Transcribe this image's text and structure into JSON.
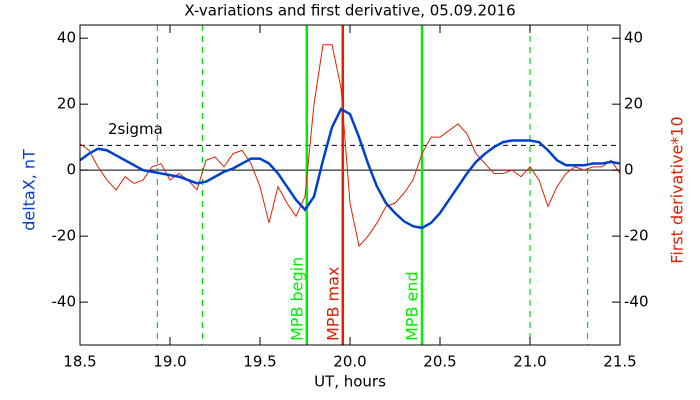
{
  "chart_data": {
    "type": "line",
    "title": "X-variations and first derivative, 05.09.2016",
    "xlabel": "UT, hours",
    "ylabel": "deltaX, nT",
    "y2label": "First derivative*10",
    "x": [
      18.5,
      18.55,
      18.6,
      18.65,
      18.7,
      18.75,
      18.8,
      18.85,
      18.9,
      18.95,
      19.0,
      19.05,
      19.1,
      19.15,
      19.2,
      19.25,
      19.3,
      19.35,
      19.4,
      19.45,
      19.5,
      19.55,
      19.6,
      19.65,
      19.7,
      19.75,
      19.8,
      19.85,
      19.9,
      19.95,
      20.0,
      20.05,
      20.1,
      20.15,
      20.2,
      20.25,
      20.3,
      20.35,
      20.4,
      20.45,
      20.5,
      20.55,
      20.6,
      20.65,
      20.7,
      20.75,
      20.8,
      20.85,
      20.9,
      20.95,
      21.0,
      21.05,
      21.1,
      21.15,
      21.2,
      21.25,
      21.3,
      21.35,
      21.4,
      21.45,
      21.5
    ],
    "series": [
      {
        "color": "#0040d0",
        "axis": "y",
        "values": [
          3,
          5,
          6.5,
          6,
          4.5,
          3,
          1.5,
          0,
          -0.5,
          -1,
          -1.5,
          -2,
          -3,
          -4,
          -3.5,
          -2,
          -0.5,
          0.5,
          2,
          3.5,
          3.5,
          2,
          -1,
          -5,
          -9,
          -12,
          -8,
          3,
          13,
          18.5,
          17,
          10,
          2,
          -5,
          -10,
          -13,
          -15.5,
          -17,
          -17.5,
          -16,
          -13,
          -9,
          -5,
          -1,
          2.5,
          5,
          7,
          8.5,
          9,
          9,
          9,
          8.5,
          6,
          3,
          1.5,
          1.5,
          1.5,
          2,
          2,
          2.5,
          2
        ]
      },
      {
        "color": "#e02000",
        "axis": "y2",
        "values": [
          8,
          6,
          1,
          -3,
          -6,
          -2,
          -4,
          -3,
          1,
          2,
          -3,
          -1,
          -3,
          -6,
          3,
          4,
          1,
          5,
          6,
          2,
          -5,
          -16,
          -5,
          -10,
          -14,
          -8,
          20,
          38,
          38,
          25,
          -10,
          -23,
          -20,
          -16,
          -11,
          -10,
          -7,
          -3,
          5,
          10,
          10,
          12,
          14,
          11,
          5,
          2,
          -1,
          -1,
          0,
          -2,
          1,
          -3,
          -11,
          -5,
          -1,
          1,
          0,
          1,
          1,
          3,
          -1
        ]
      }
    ],
    "xlim": [
      18.5,
      21.5
    ],
    "xticks": [
      18.5,
      {
        "value": 19,
        "label": "19.0"
      },
      19.5,
      {
        "value": 20,
        "label": "20.0"
      },
      20.5,
      {
        "value": 21,
        "label": "21.0"
      },
      21.5
    ],
    "ylim": [
      -53,
      44
    ],
    "yticks": [
      -40,
      -20,
      0,
      20,
      40
    ],
    "y2lim": [
      -53,
      44
    ],
    "y2ticks": [
      -40,
      -20,
      0,
      20,
      40
    ],
    "hlines": [
      {
        "y": 0,
        "style": "solid",
        "color": "#000000"
      },
      {
        "y": 7.5,
        "style": "dashed",
        "color": "#000000",
        "label": "2sigma"
      }
    ],
    "vlines": [
      {
        "x": 18.93,
        "style": "dashed",
        "color": "#00dd00"
      },
      {
        "x": 19.18,
        "style": "dashed",
        "color": "#00dd00"
      },
      {
        "x": 19.76,
        "style": "solid",
        "color": "#00ee00",
        "label": "MPB begin"
      },
      {
        "x": 19.96,
        "style": "solid",
        "color": "#e02000",
        "label": "MPB max"
      },
      {
        "x": 20.4,
        "style": "solid",
        "color": "#00ee00",
        "label": "MPB end"
      },
      {
        "x": 21.0,
        "style": "dashed",
        "color": "#00dd00"
      },
      {
        "x": 21.32,
        "style": "dashed",
        "color": "#00dd00"
      }
    ]
  }
}
